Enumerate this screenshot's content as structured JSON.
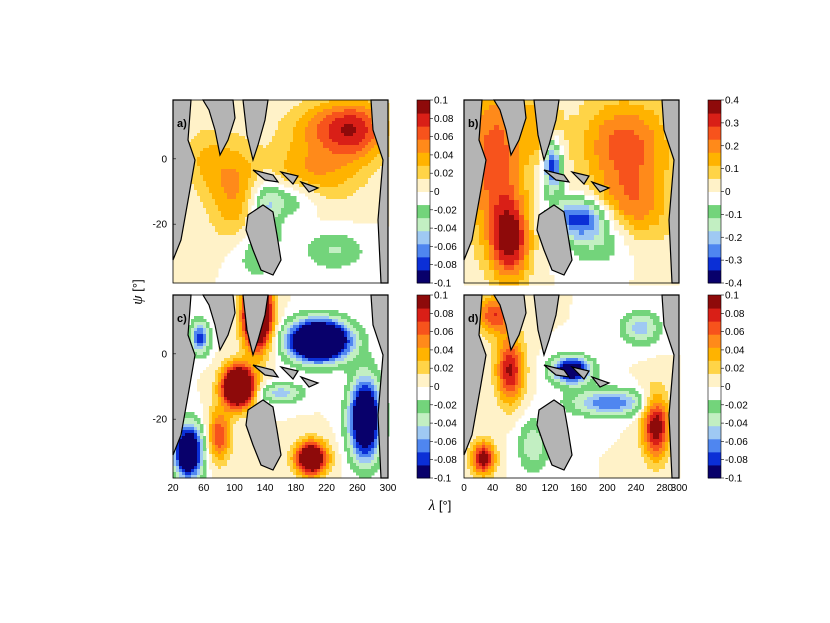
{
  "chart_data": {
    "type": "heatmap",
    "xlabel_symbol": "λ",
    "xlabel_unit": "[°]",
    "ylabel_symbol": "ψ",
    "ylabel_unit": "[°]",
    "xlim": [
      20,
      300
    ],
    "ylim": [
      -38,
      18
    ],
    "xticks": [
      20,
      60,
      100,
      140,
      180,
      220,
      260,
      300
    ],
    "xticks_d": [
      0,
      40,
      80,
      120,
      160,
      200,
      240,
      280,
      300
    ],
    "yticks": [
      0,
      -20
    ],
    "colormap": [
      "#08006b",
      "#0b2fd6",
      "#4f86f0",
      "#9fc9f3",
      "#c2efc2",
      "#73d47b",
      "#ffffff",
      "#fff2c8",
      "#ffd447",
      "#ffb300",
      "#ff8a1a",
      "#f7531c",
      "#d91f17",
      "#8e0a0a"
    ],
    "land_color": "#b4b4b4",
    "panels": [
      {
        "label": "a)",
        "cbar_ticks": [
          "0.1",
          "0.08",
          "0.06",
          "0.04",
          "0.02",
          "0",
          "-0.02",
          "-0.04",
          "-0.06",
          "-0.08",
          "-0.1"
        ],
        "range": [
          -0.1,
          0.1
        ],
        "style": "smooth"
      },
      {
        "label": "b)",
        "cbar_ticks": [
          "0.4",
          "0.3",
          "0.2",
          "0.1",
          "0",
          "-0.1",
          "-0.2",
          "-0.3",
          "-0.4"
        ],
        "range": [
          -0.45,
          0.45
        ],
        "style": "blocky"
      },
      {
        "label": "c)",
        "cbar_ticks": [
          "0.1",
          "0.08",
          "0.06",
          "0.04",
          "0.02",
          "0",
          "-0.02",
          "-0.04",
          "-0.06",
          "-0.08",
          "-0.1"
        ],
        "range": [
          -0.1,
          0.1
        ],
        "style": "smooth"
      },
      {
        "label": "d)",
        "cbar_ticks": [
          "0.1",
          "0.08",
          "0.06",
          "0.04",
          "0.02",
          "0",
          "-0.02",
          "-0.04",
          "-0.06",
          "-0.08",
          "-0.1"
        ],
        "range": [
          -0.1,
          0.1
        ],
        "style": "smooth"
      }
    ]
  }
}
